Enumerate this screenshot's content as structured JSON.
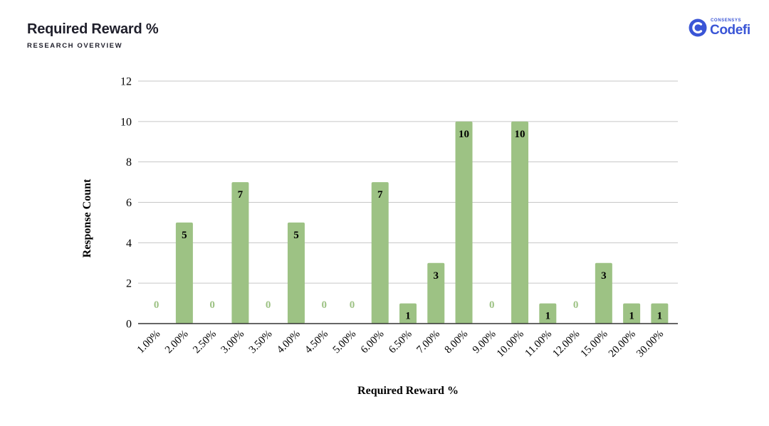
{
  "header": {
    "title": "Required Reward %",
    "subtitle": "RESEARCH OVERVIEW"
  },
  "logo": {
    "brand_small": "CONSENSYS",
    "brand_name": "Codefi",
    "icon": "codefi-logo-icon",
    "color": "#3a55d6"
  },
  "chart_data": {
    "type": "bar",
    "title": "",
    "xlabel": "Required Reward %",
    "ylabel": "Response Count",
    "ylim": [
      0,
      12
    ],
    "yticks": [
      0,
      2,
      4,
      6,
      8,
      10,
      12
    ],
    "grid": true,
    "legend": "none",
    "categories": [
      "1.00%",
      "2.00%",
      "2.50%",
      "3.00%",
      "3.50%",
      "4.00%",
      "4.50%",
      "5.00%",
      "6.00%",
      "6.50%",
      "7.00%",
      "8.00%",
      "9.00%",
      "10.00%",
      "11.00%",
      "12.00%",
      "15.00%",
      "20.00%",
      "30.00%"
    ],
    "values": [
      0,
      5,
      0,
      7,
      0,
      5,
      0,
      0,
      7,
      1,
      3,
      10,
      0,
      10,
      1,
      0,
      3,
      1,
      1
    ],
    "bar_color": "#9dc284",
    "label_color": "#000000",
    "zero_label_color": "#9dc284"
  }
}
